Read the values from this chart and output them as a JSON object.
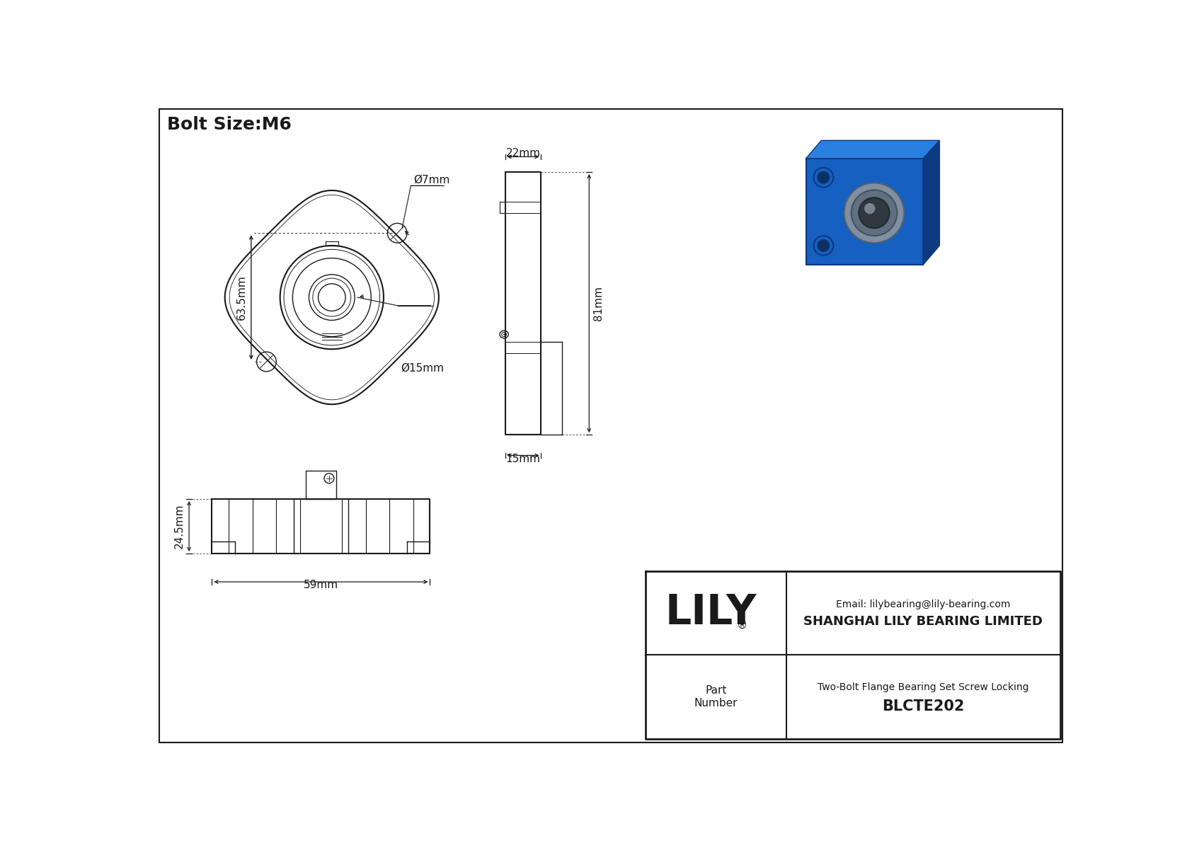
{
  "title": "Bolt Size:M6",
  "bg_color": "#ffffff",
  "line_color": "#1a1a1a",
  "company": "SHANGHAI LILY BEARING LIMITED",
  "email": "Email: lilybearing@lily-bearing.com",
  "part_number_label": "Part\nNumber",
  "part_number": "BLCTE202",
  "part_desc": "Two-Bolt Flange Bearing Set Screw Locking",
  "brand": "LILY",
  "dims": {
    "bolt_hole_dia": "Ø7mm",
    "bore_dia": "Ø15mm",
    "height": "63.5mm",
    "side_width": "22mm",
    "side_height": "81mm",
    "side_base": "15mm",
    "front_height": "24.5mm",
    "front_width": "59mm"
  }
}
